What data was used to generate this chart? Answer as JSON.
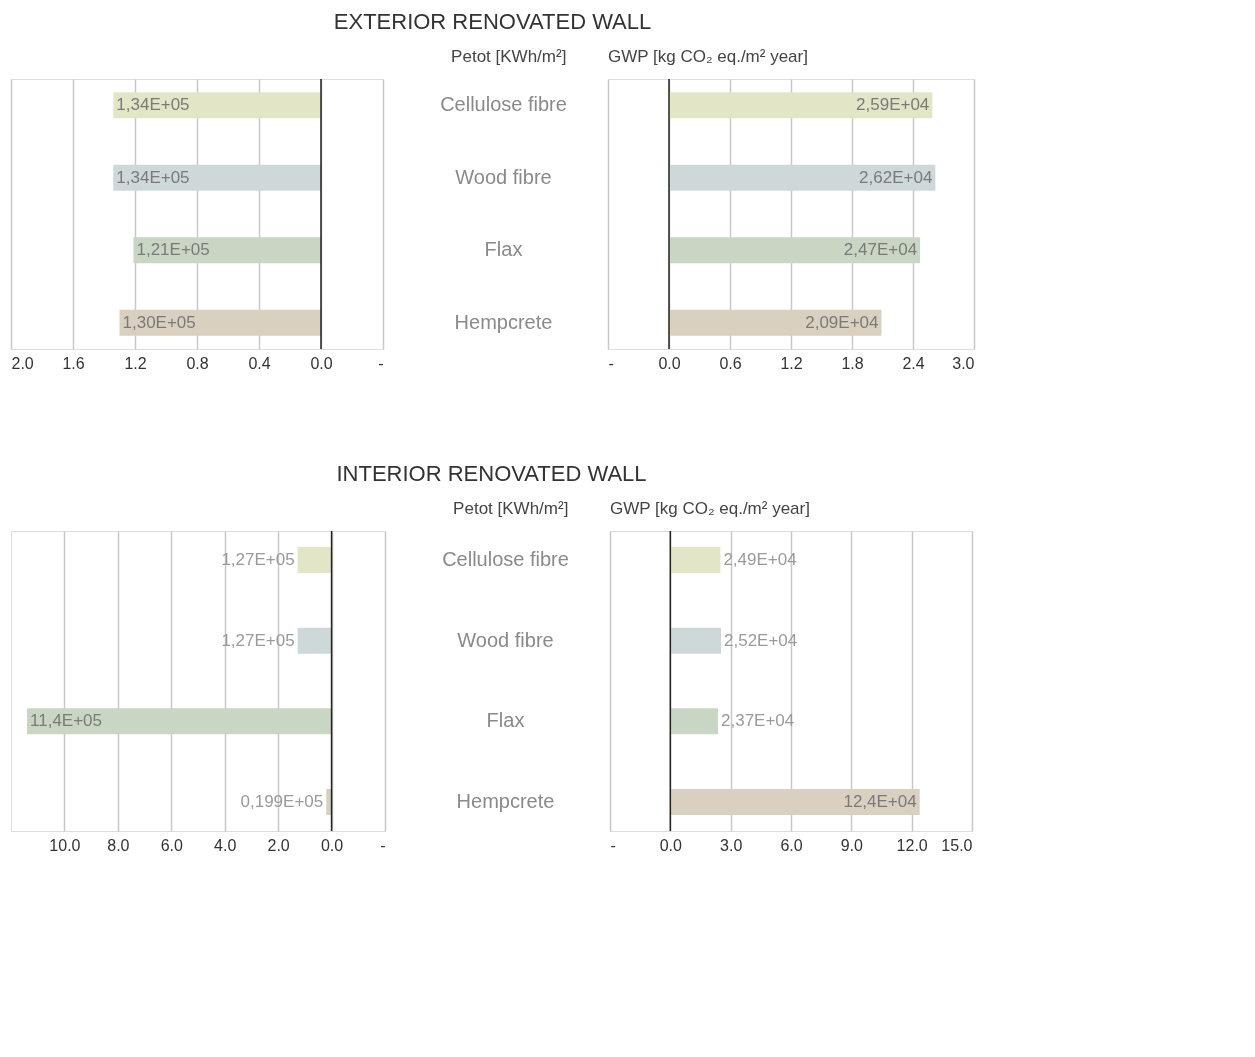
{
  "chart_data": [
    {
      "type": "bar",
      "orientation": "horizontal",
      "title": "EXTERIOR RENOVATED WALL",
      "xlabel": "Petot [KWh/m²]",
      "categories": [
        "Cellulose fibre",
        "Wood fibre",
        "Flax",
        "Hempcrete"
      ],
      "values": [
        1.34,
        1.34,
        1.21,
        1.3
      ],
      "value_labels": [
        "1,34E+05",
        "1,34E+05",
        "1,21E+05",
        "1,30E+05"
      ],
      "colors": [
        "#e3e6c6",
        "#cfd8d8",
        "#c9d6c4",
        "#d9d0c0"
      ],
      "xlim": [
        2.0,
        -0.4
      ],
      "xticks": [
        {
          "value": 2.0,
          "label": "2.0"
        },
        {
          "value": 1.6,
          "label": "1.6"
        },
        {
          "value": 1.2,
          "label": "1.2"
        },
        {
          "value": 0.8,
          "label": "0.8"
        },
        {
          "value": 0.4,
          "label": "0.4"
        },
        {
          "value": 0,
          "label": "0.0"
        },
        {
          "value": -0.4,
          "label": "-"
        }
      ],
      "grid": "x",
      "ref_lines": [
        {
          "axis": "x",
          "value": 0,
          "color": "#222222"
        }
      ]
    },
    {
      "type": "bar",
      "orientation": "horizontal",
      "xlabel": "GWP [kg CO₂ eq./m² year]",
      "categories": [
        null,
        null,
        null,
        null
      ],
      "values": [
        2.59,
        2.62,
        2.47,
        2.09
      ],
      "value_labels": [
        "2,59E+04",
        "2,62E+04",
        "2,47E+04",
        "2,09E+04"
      ],
      "colors": [
        "#e3e6c6",
        "#cfd8d8",
        "#c9d6c4",
        "#d9d0c0"
      ],
      "xlim": [
        -0.6,
        3.0
      ],
      "xticks": [
        {
          "value": -0.6,
          "label": "-"
        },
        {
          "value": 0,
          "label": "0.0"
        },
        {
          "value": 0.6,
          "label": "0.6"
        },
        {
          "value": 1.2,
          "label": "1.2"
        },
        {
          "value": 1.8,
          "label": "1.8"
        },
        {
          "value": 2.4,
          "label": "2.4"
        },
        {
          "value": 3.0,
          "label": "3.0"
        }
      ],
      "grid": "x",
      "tick_labels": "x",
      "ref_lines": [
        {
          "axis": "x",
          "value": 0,
          "color": "#222222"
        }
      ]
    },
    {
      "type": "bar",
      "orientation": "horizontal",
      "title": "INTERIOR RENOVATED WALL",
      "xlabel": "Petot [KWh/m²]",
      "categories": [
        "Cellulose fibre",
        "Wood fibre",
        "Flax",
        "Hempcrete"
      ],
      "values": [
        1.27,
        1.27,
        11.4,
        0.199
      ],
      "value_labels": [
        "1,27E+05",
        "1,27E+05",
        "11,4E+05",
        "0,199E+05"
      ],
      "colors": [
        "#e3e6c6",
        "#cfd8d8",
        "#c9d6c4",
        "#d9d0c0"
      ],
      "xlim": [
        12.0,
        -2.0
      ],
      "xticks": [
        {
          "value": 10.0,
          "label": "10.0"
        },
        {
          "value": 8.0,
          "label": "8.0"
        },
        {
          "value": 6.0,
          "label": "6.0"
        },
        {
          "value": 4.0,
          "label": "4.0"
        },
        {
          "value": 2.0,
          "label": "2.0"
        },
        {
          "value": 0,
          "label": "0.0"
        },
        {
          "value": -2.0,
          "label": "-"
        }
      ],
      "grid": "x",
      "ref_lines": [
        {
          "axis": "x",
          "value": 0,
          "color": "#222222"
        }
      ]
    },
    {
      "type": "bar",
      "orientation": "horizontal",
      "xlabel": "GWP [kg CO₂ eq./m² year]",
      "categories": [
        null,
        null,
        null,
        null
      ],
      "values": [
        2.49,
        2.52,
        2.37,
        12.4
      ],
      "value_labels": [
        "2,49E+04",
        "2,52E+04",
        "2,37E+04",
        "12,4E+04"
      ],
      "colors": [
        "#e3e6c6",
        "#cfd8d8",
        "#c9d6c4",
        "#d9d0c0"
      ],
      "xlim": [
        -3.0,
        15.0
      ],
      "xticks": [
        {
          "value": -3.0,
          "label": "-"
        },
        {
          "value": 0,
          "label": "0.0"
        },
        {
          "value": 3.0,
          "label": "3.0"
        },
        {
          "value": 6.0,
          "label": "6.0"
        },
        {
          "value": 9.0,
          "label": "9.0"
        },
        {
          "value": 12.0,
          "label": "12.0"
        },
        {
          "value": 15.0,
          "label": "15.0"
        }
      ],
      "grid": "x",
      "tick_labels": "x",
      "ref_lines": [
        {
          "axis": "x",
          "value": 0,
          "color": "#222222"
        }
      ]
    }
  ]
}
